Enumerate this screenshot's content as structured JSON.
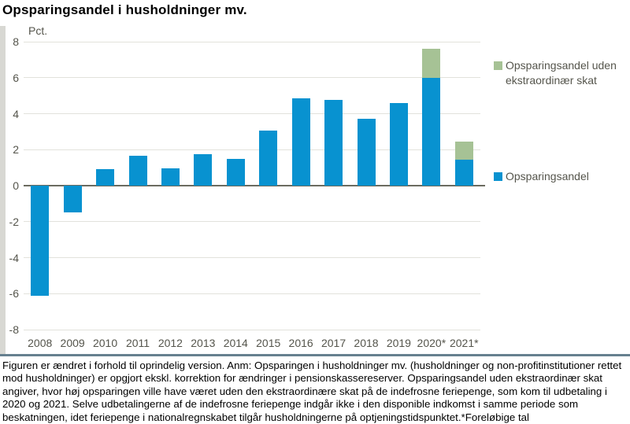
{
  "page": {
    "footnote": "Figuren er ændret i forhold til oprindelig version. Anm: Opsparingen i husholdninger mv. (husholdninger og non-profitinstitutioner rettet mod husholdninger) er opgjort ekskl. korrektion for ændringer i pensionskassereserver. Opsparingsandel uden ekstraordinær skat angiver, hvor høj opsparingen ville have været uden den ekstraordinære skat på de indefrosne feriepenge, som kom til udbetaling i 2020 og 2021. Selve udbetalingerne af de indefrosne feriepenge indgår ikke i den disponible indkomst i samme periode som beskatningen, idet feriepenge i nationalregnskabet tilgår husholdningerne på optjeningstidspunktet.*Foreløbige tal"
  },
  "chart_data": {
    "type": "bar",
    "stacked": true,
    "title": "Opsparingsandel i husholdninger mv.",
    "unit_label": "Pct.",
    "categories": [
      "2008",
      "2009",
      "2010",
      "2011",
      "2012",
      "2013",
      "2014",
      "2015",
      "2016",
      "2017",
      "2018",
      "2019",
      "2020*",
      "2021*"
    ],
    "series": [
      {
        "name": "Opsparingsandel",
        "color": "#0892d0",
        "values": [
          -6.1,
          -1.5,
          0.9,
          1.65,
          0.95,
          1.75,
          1.5,
          3.05,
          4.85,
          4.75,
          3.7,
          4.6,
          6.0,
          1.45
        ]
      },
      {
        "name": "Opsparingsandel uden ekstraordinær skat",
        "color": "#a6c295",
        "values": [
          0,
          0,
          0,
          0,
          0,
          0,
          0,
          0,
          0,
          0,
          0,
          0,
          1.6,
          1.0
        ]
      }
    ],
    "ylim": [
      -8,
      8
    ],
    "ytick_step": 2,
    "grid": true,
    "legend_position": "right",
    "colors": {
      "gridline": "#e2e2dc",
      "zero_line": "#6b6b60",
      "axis_text": "#55554c",
      "separator": "#66808f"
    }
  }
}
